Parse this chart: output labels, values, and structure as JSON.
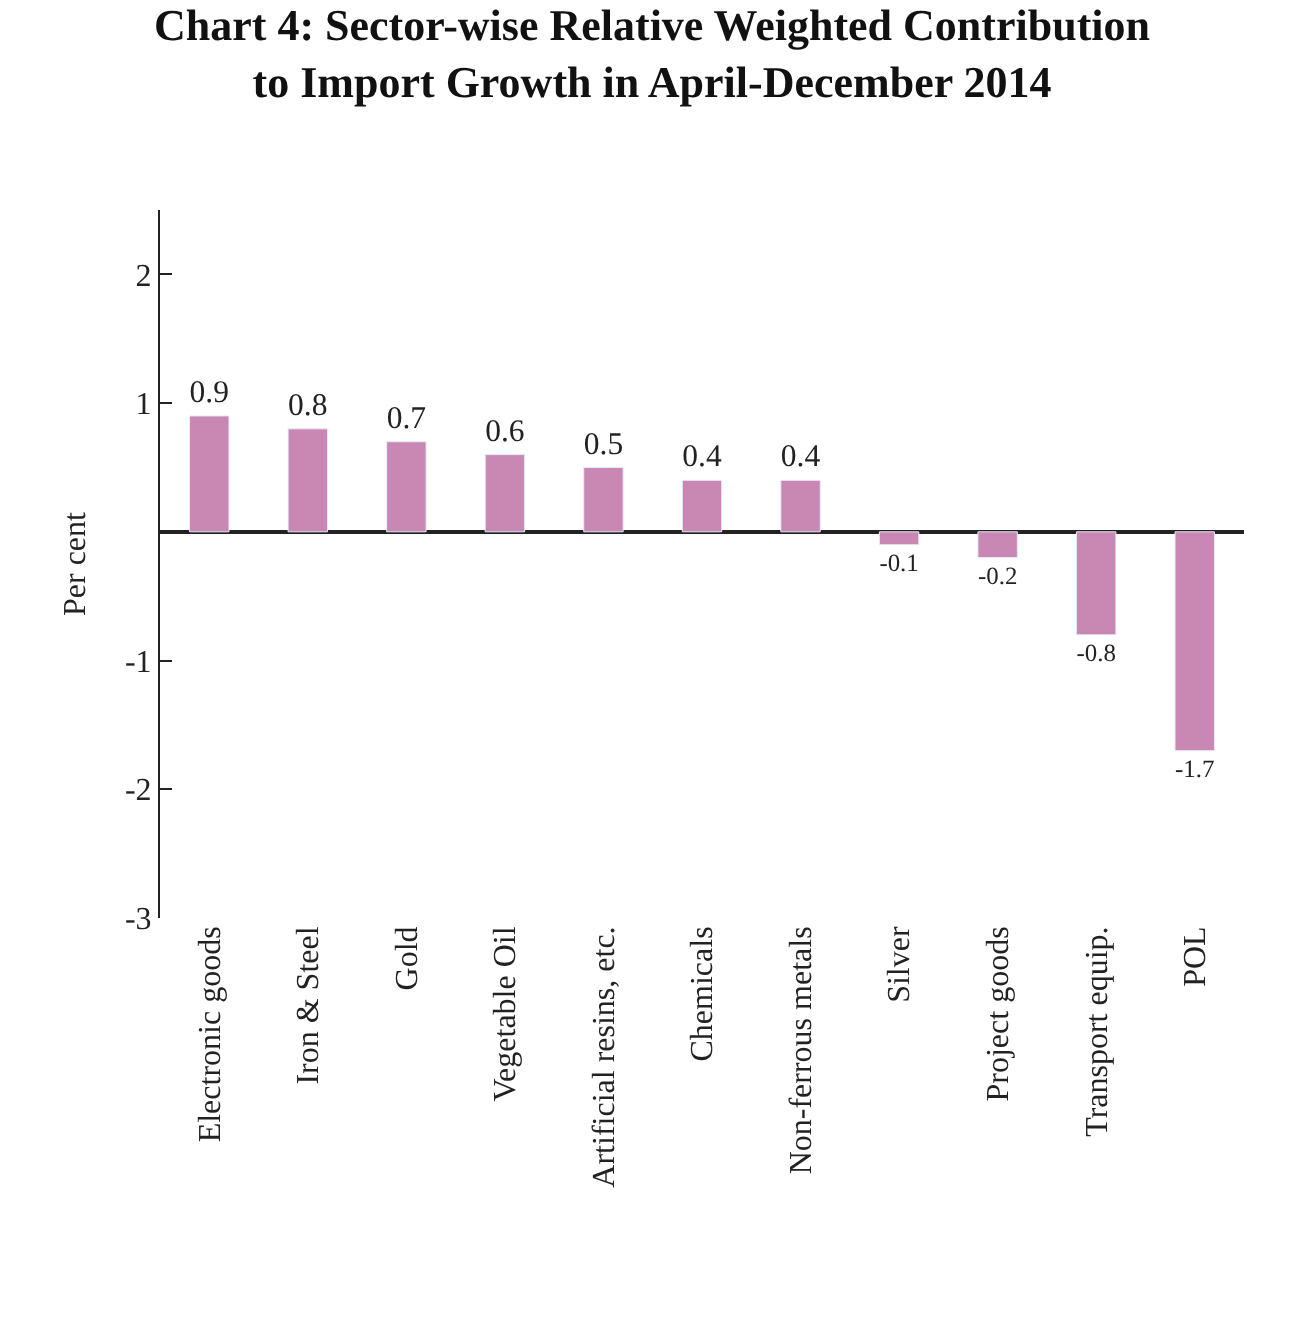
{
  "chart_data": {
    "type": "bar",
    "title": "Chart 4: Sector-wise Relative Weighted Contribution to Import Growth in April-December 2014",
    "ylabel": "Per cent",
    "categories": [
      "Electronic goods",
      "Iron & Steel",
      "Gold",
      "Vegetable Oil",
      "Artificial resins, etc.",
      "Chemicals",
      "Non-ferrous metals",
      "Silver",
      "Project goods",
      "Transport equip.",
      "POL"
    ],
    "values": [
      0.9,
      0.8,
      0.7,
      0.6,
      0.5,
      0.4,
      0.4,
      -0.1,
      -0.2,
      -0.8,
      -1.7
    ],
    "color": "#c987b3",
    "ylim": [
      -3,
      2.5
    ],
    "yticks": [
      -3,
      -2,
      -1,
      1,
      2
    ],
    "data_labels": true
  }
}
